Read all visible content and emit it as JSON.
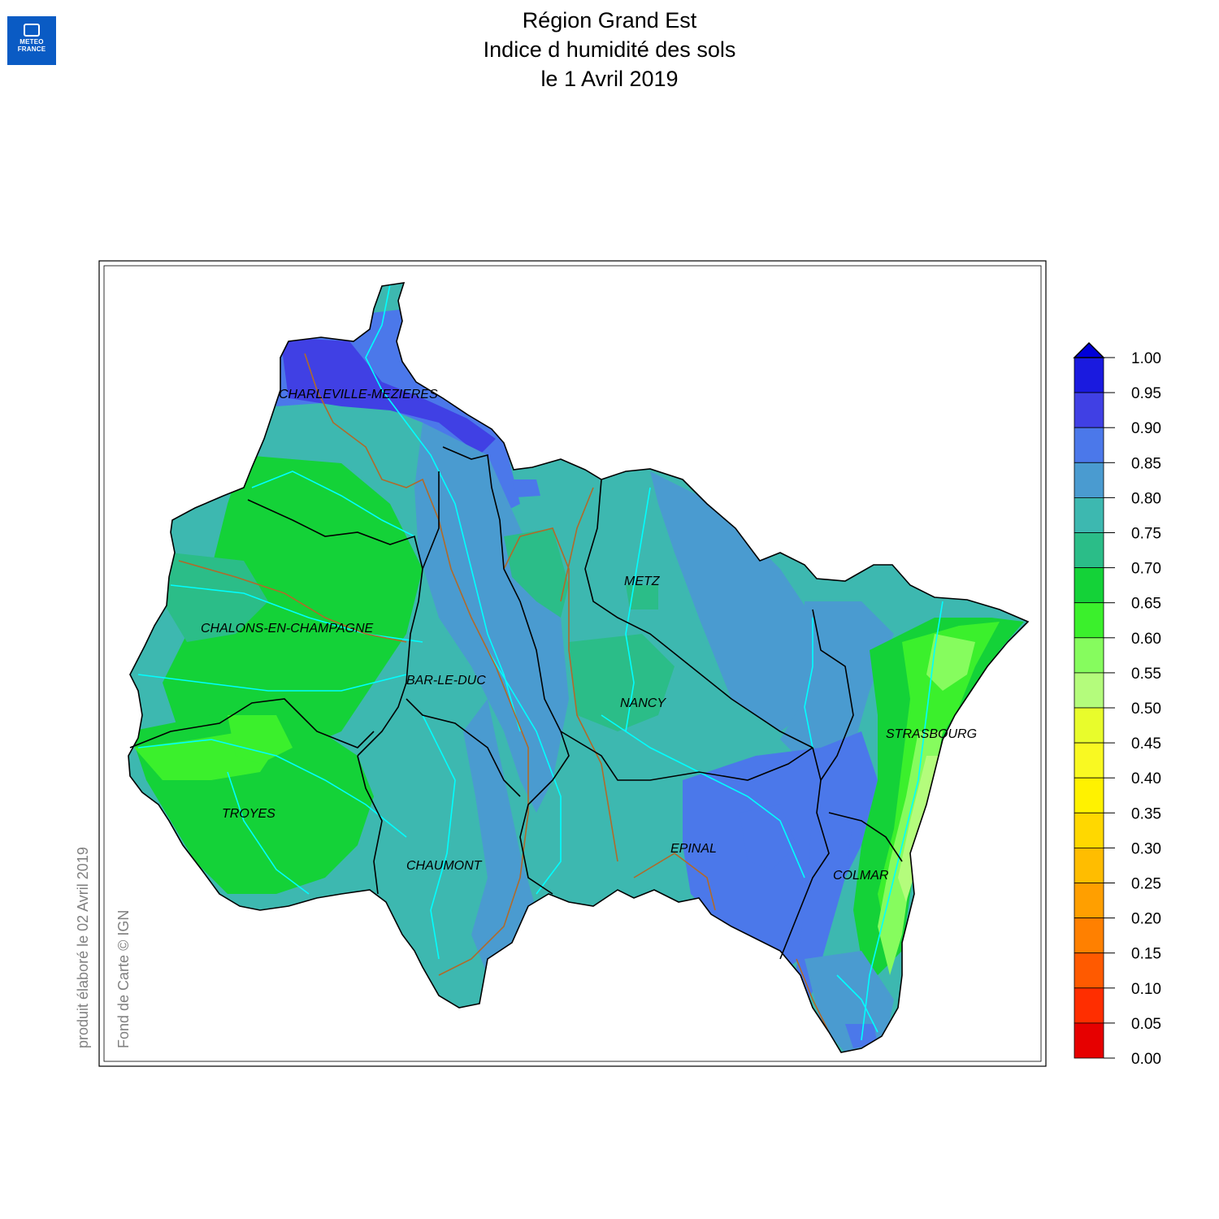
{
  "logo": {
    "line1": "METEO",
    "line2": "FRANCE"
  },
  "title": {
    "line1": "Région Grand Est",
    "line2": "Indice d humidité des sols",
    "line3": "le 1 Avril 2019"
  },
  "credits": {
    "produced": "produit élaboré le 02 Avril 2019",
    "basemap": "Fond de Carte © IGN"
  },
  "cities": [
    {
      "name": "CHARLEVILLE-MEZIERES"
    },
    {
      "name": "METZ"
    },
    {
      "name": "CHALONS-EN-CHAMPAGNE"
    },
    {
      "name": "BAR-LE-DUC"
    },
    {
      "name": "NANCY"
    },
    {
      "name": "STRASBOURG"
    },
    {
      "name": "TROYES"
    },
    {
      "name": "CHAUMONT"
    },
    {
      "name": "EPINAL"
    },
    {
      "name": "COLMAR"
    }
  ],
  "legend": {
    "ticks": [
      "1.00",
      "0.95",
      "0.90",
      "0.85",
      "0.80",
      "0.75",
      "0.70",
      "0.65",
      "0.60",
      "0.55",
      "0.50",
      "0.45",
      "0.40",
      "0.35",
      "0.30",
      "0.25",
      "0.20",
      "0.15",
      "0.10",
      "0.05",
      "0.00"
    ],
    "bands_top_to_bottom": [
      "#1a1adf",
      "#4040e4",
      "#4b78ea",
      "#4a9bd0",
      "#3db8b0",
      "#2bbd88",
      "#14d238",
      "#3bf02c",
      "#86fc5e",
      "#b4fc7c",
      "#e8fc2c",
      "#f9f922",
      "#fff200",
      "#ffd800",
      "#ffbd00",
      "#ff9f00",
      "#ff8000",
      "#ff5a00",
      "#ff2e00",
      "#e60000"
    ],
    "overflow_color": "#0000d8"
  },
  "map_colors": {
    "very_wet": "#4040e4",
    "wet": "#4b78ea",
    "moist_high": "#4a9bd0",
    "moist": "#3db8b0",
    "medium": "#2bbd88",
    "green": "#14d238",
    "bright_green": "#3bf02c",
    "light_green": "#86fc5e",
    "pale_green": "#b4fc7c",
    "rivers": "#00ffff",
    "canals": "#b06a2a",
    "borders": "#000000"
  }
}
